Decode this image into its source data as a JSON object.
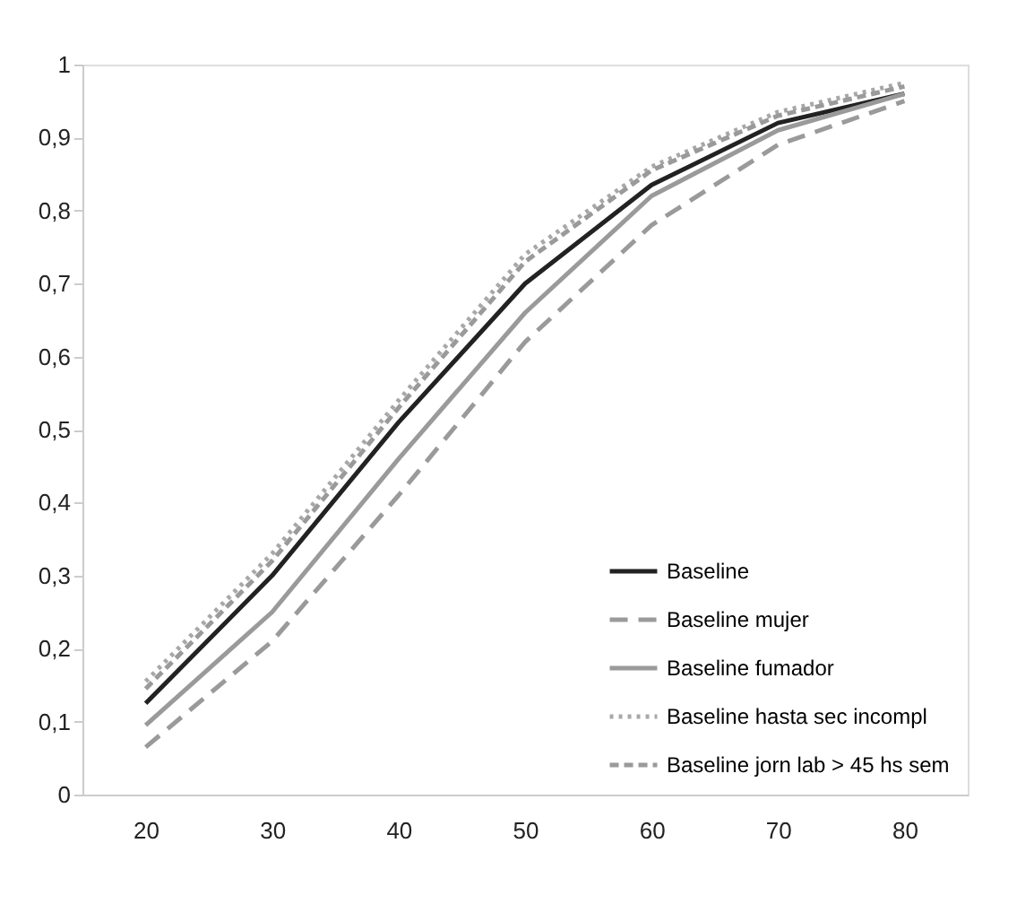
{
  "chart_data": {
    "type": "line",
    "categories": [
      "20",
      "30",
      "40",
      "50",
      "60",
      "70",
      "80"
    ],
    "ylim": [
      0,
      1
    ],
    "yticks": [
      0,
      {
        "value": 0.1,
        "label": "0,1"
      },
      {
        "value": 0.2,
        "label": "0,2"
      },
      {
        "value": 0.3,
        "label": "0,3"
      },
      {
        "value": 0.4,
        "label": "0,4"
      },
      {
        "value": 0.5,
        "label": "0,5"
      },
      {
        "value": 0.6,
        "label": "0,6"
      },
      {
        "value": 0.7,
        "label": "0,7"
      },
      {
        "value": 0.8,
        "label": "0,8"
      },
      {
        "value": 0.9,
        "label": "0,9"
      },
      1
    ],
    "grid": false,
    "legend": "bottom right",
    "marker": "none",
    "series": [
      {
        "name": "Baseline",
        "color": "#222222",
        "line_style": "solid",
        "values": [
          0.125,
          0.3,
          0.51,
          0.7,
          0.835,
          0.92,
          0.96
        ]
      },
      {
        "name": "Baseline mujer",
        "color": "#9a9a9a",
        "line_style": "dashed",
        "values": [
          0.065,
          0.21,
          0.41,
          0.62,
          0.78,
          0.89,
          0.95
        ]
      },
      {
        "name": "Baseline fumador",
        "color": "#9a9a9a",
        "line_style": "solid",
        "values": [
          0.095,
          0.25,
          0.46,
          0.66,
          0.82,
          0.91,
          0.96
        ]
      },
      {
        "name": "Baseline hasta sec incompl",
        "color": "#a8a8a8",
        "line_style": "dotted",
        "values": [
          0.155,
          0.33,
          0.54,
          0.74,
          0.86,
          0.935,
          0.975
        ]
      },
      {
        "name": "Baseline jorn lab > 45 hs sem",
        "color": "#9a9a9a",
        "line_style": "shortdash",
        "values": [
          0.145,
          0.32,
          0.53,
          0.73,
          0.855,
          0.93,
          0.97
        ]
      }
    ]
  }
}
